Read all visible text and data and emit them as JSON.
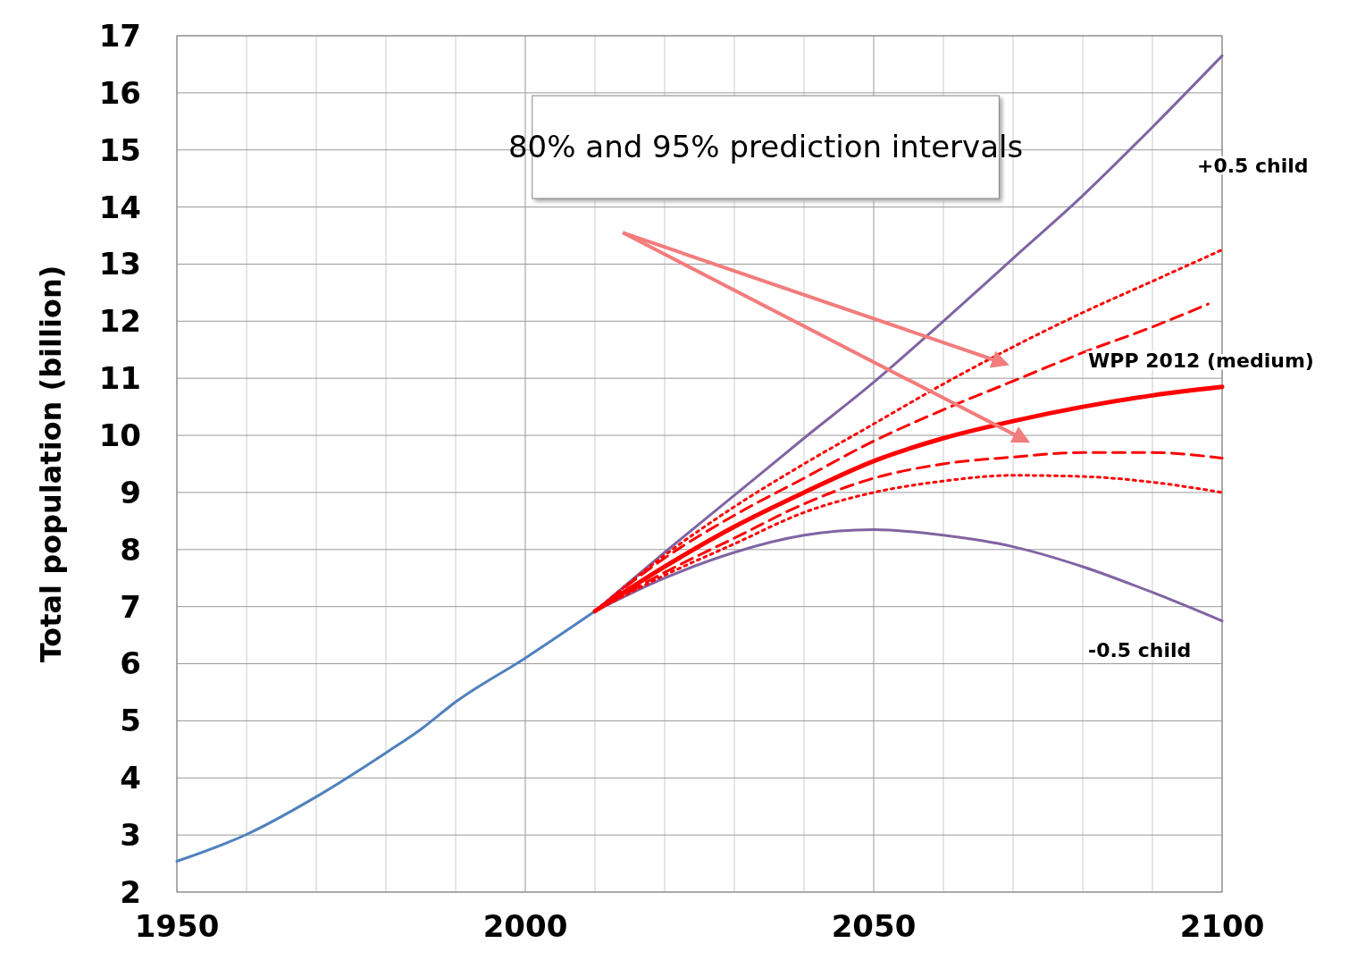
{
  "chart_data": {
    "type": "line",
    "ylabel": "Total population (billion)",
    "xlim": [
      1950,
      2100
    ],
    "ylim": [
      2,
      17
    ],
    "xticks": [
      1950,
      {
        "value": 1960,
        "label": null
      },
      {
        "value": 1970,
        "label": null
      },
      {
        "value": 1980,
        "label": null
      },
      {
        "value": 1990,
        "label": null
      },
      2000,
      {
        "value": 2010,
        "label": null
      },
      {
        "value": 2020,
        "label": null
      },
      {
        "value": 2030,
        "label": null
      },
      {
        "value": 2040,
        "label": null
      },
      2050,
      {
        "value": 2060,
        "label": null
      },
      {
        "value": 2070,
        "label": null
      },
      {
        "value": 2080,
        "label": null
      },
      {
        "value": 2090,
        "label": null
      },
      2100
    ],
    "yticks": [
      2,
      3,
      4,
      5,
      6,
      7,
      8,
      9,
      10,
      11,
      12,
      13,
      14,
      15,
      16,
      17
    ],
    "grid": true,
    "legend": false,
    "annotations": [
      "80% and 95% prediction intervals"
    ],
    "series": [
      {
        "color": "#4f81bd",
        "line_style": "solid",
        "x": [
          1950,
          1960,
          1970,
          1980,
          1985,
          1990,
          2000,
          2010
        ],
        "values": [
          2.54,
          3.01,
          3.67,
          4.44,
          4.85,
          5.33,
          6.1,
          6.92
        ]
      },
      {
        "name": "+0.5 child",
        "color": "#8064a2",
        "line_style": "solid",
        "x": [
          2010,
          2020,
          2030,
          2040,
          2050,
          2060,
          2070,
          2080,
          2090,
          2100
        ],
        "values": [
          6.92,
          7.95,
          8.95,
          9.95,
          10.93,
          12.0,
          13.1,
          14.2,
          15.4,
          16.65
        ]
      },
      {
        "name": "-0.5 child",
        "color": "#8064a2",
        "line_style": "solid",
        "x": [
          2010,
          2020,
          2030,
          2040,
          2050,
          2060,
          2070,
          2080,
          2090,
          2100
        ],
        "values": [
          6.92,
          7.5,
          7.95,
          8.25,
          8.35,
          8.25,
          8.05,
          7.7,
          7.25,
          6.75
        ]
      },
      {
        "color": "#ff0000",
        "line_style": "dotted",
        "x": [
          2010,
          2020,
          2030,
          2040,
          2050,
          2060,
          2070,
          2080,
          2090,
          2100
        ],
        "values": [
          6.92,
          7.9,
          8.75,
          9.5,
          10.2,
          10.9,
          11.55,
          12.15,
          12.7,
          13.25
        ]
      },
      {
        "color": "#ff0000",
        "line_style": "dashed",
        "x": [
          2010,
          2020,
          2030,
          2040,
          2050,
          2060,
          2070,
          2080,
          2090,
          2098
        ],
        "values": [
          6.92,
          7.85,
          8.6,
          9.25,
          9.9,
          10.45,
          10.95,
          11.45,
          11.9,
          12.3
        ]
      },
      {
        "name": "WPP 2012 (medium)",
        "color": "#ff0000",
        "line_style": "solid",
        "x": [
          2010,
          2020,
          2030,
          2040,
          2050,
          2060,
          2070,
          2080,
          2090,
          2100
        ],
        "values": [
          6.92,
          7.7,
          8.4,
          9.0,
          9.55,
          9.95,
          10.25,
          10.5,
          10.7,
          10.85
        ]
      },
      {
        "color": "#ff0000",
        "line_style": "dashed",
        "x": [
          2010,
          2020,
          2030,
          2040,
          2050,
          2060,
          2070,
          2080,
          2090,
          2100
        ],
        "values": [
          6.92,
          7.6,
          8.2,
          8.8,
          9.25,
          9.5,
          9.62,
          9.7,
          9.7,
          9.6
        ]
      },
      {
        "color": "#ff0000",
        "line_style": "dotted",
        "x": [
          2010,
          2020,
          2030,
          2040,
          2050,
          2060,
          2070,
          2080,
          2090,
          2100
        ],
        "values": [
          6.92,
          7.55,
          8.1,
          8.65,
          9.0,
          9.2,
          9.3,
          9.28,
          9.18,
          9.0
        ]
      }
    ]
  }
}
